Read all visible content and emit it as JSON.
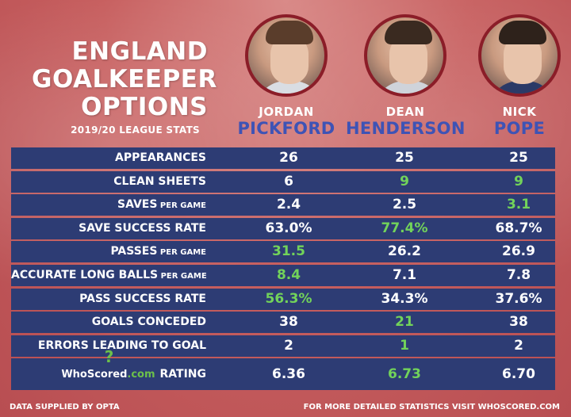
{
  "header": {
    "title_lines": [
      "ENGLAND",
      "GOALKEEPER",
      "OPTIONS"
    ],
    "subtitle": "2019/20 LEAGUE STATS"
  },
  "players": [
    {
      "first": "JORDAN",
      "last": "PICKFORD"
    },
    {
      "first": "DEAN",
      "last": "HENDERSON"
    },
    {
      "first": "NICK",
      "last": "POPE"
    }
  ],
  "stats": [
    {
      "label": "APPEARANCES",
      "suffix": "",
      "values": [
        "26",
        "25",
        "25"
      ],
      "highlight": [
        false,
        false,
        false
      ]
    },
    {
      "label": "CLEAN SHEETS",
      "suffix": "",
      "values": [
        "6",
        "9",
        "9"
      ],
      "highlight": [
        false,
        true,
        true
      ]
    },
    {
      "label": "SAVES",
      "suffix": "PER GAME",
      "values": [
        "2.4",
        "2.5",
        "3.1"
      ],
      "highlight": [
        false,
        false,
        true
      ]
    },
    {
      "label": "SAVE SUCCESS RATE",
      "suffix": "",
      "values": [
        "63.0%",
        "77.4%",
        "68.7%"
      ],
      "highlight": [
        false,
        true,
        false
      ]
    },
    {
      "label": "PASSES",
      "suffix": "PER GAME",
      "values": [
        "31.5",
        "26.2",
        "26.9"
      ],
      "highlight": [
        true,
        false,
        false
      ]
    },
    {
      "label": "ACCURATE LONG BALLS",
      "suffix": "PER GAME",
      "values": [
        "8.4",
        "7.1",
        "7.8"
      ],
      "highlight": [
        true,
        false,
        false
      ]
    },
    {
      "label": "PASS SUCCESS RATE",
      "suffix": "",
      "values": [
        "56.3%",
        "34.3%",
        "37.6%"
      ],
      "highlight": [
        true,
        false,
        false
      ]
    },
    {
      "label": "GOALS CONCEDED",
      "suffix": "",
      "values": [
        "38",
        "21",
        "38"
      ],
      "highlight": [
        false,
        true,
        false
      ]
    },
    {
      "label": "ERRORS LEADING TO GOAL",
      "suffix": "",
      "values": [
        "2",
        "1",
        "2"
      ],
      "highlight": [
        false,
        true,
        false
      ]
    }
  ],
  "rating": {
    "logo_text": "WhoScored",
    "logo_suffix": ".com",
    "label": "RATING",
    "values": [
      "6.36",
      "6.73",
      "6.70"
    ],
    "highlight": [
      false,
      true,
      false
    ]
  },
  "footer": {
    "left": "DATA SUPPLIED BY OPTA",
    "right": "FOR MORE DETAILED STATISTICS VISIT WHOSCORED.COM"
  },
  "colors": {
    "background": "#c75f5f",
    "table_row": "#2d3c74",
    "highlight": "#72d35a",
    "surname": "#3e53b5",
    "avatar_border": "#8b1d28"
  }
}
